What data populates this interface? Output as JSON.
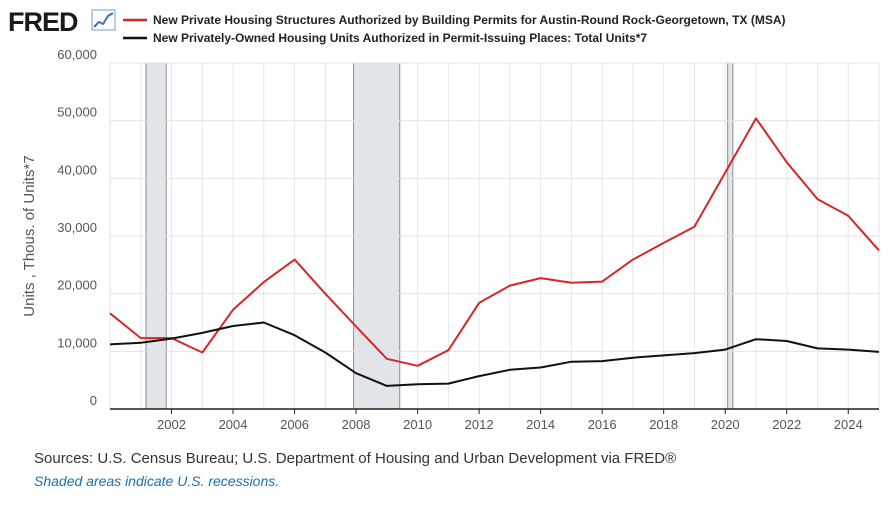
{
  "header": {
    "logo_text": "FRED",
    "logo_icon": "trend-line-icon"
  },
  "chart_data": {
    "type": "line",
    "title": "",
    "xlabel": "",
    "ylabel": "Units , Thous. of Units*7",
    "xlim": [
      2000,
      2025
    ],
    "ylim": [
      0,
      60000
    ],
    "y_ticks": [
      0,
      10000,
      20000,
      30000,
      40000,
      50000,
      60000
    ],
    "y_tick_labels": [
      "0",
      "10,000",
      "20,000",
      "30,000",
      "40,000",
      "50,000",
      "60,000"
    ],
    "x_ticks": [
      2002,
      2004,
      2006,
      2008,
      2010,
      2012,
      2014,
      2016,
      2018,
      2020,
      2022,
      2024
    ],
    "x_tick_labels": [
      "2002",
      "2004",
      "2006",
      "2008",
      "2010",
      "2012",
      "2014",
      "2016",
      "2018",
      "2020",
      "2022",
      "2024"
    ],
    "grid": true,
    "legend_position": "top",
    "recessions": [
      {
        "start": 2001.17,
        "end": 2001.83
      },
      {
        "start": 2007.92,
        "end": 2009.42
      },
      {
        "start": 2020.08,
        "end": 2020.25
      }
    ],
    "series": [
      {
        "name": "New Private Housing Structures Authorized by Building Permits for Austin-Round Rock-Georgetown, TX (MSA)",
        "color": "#d62728",
        "x": [
          2000,
          2001,
          2002,
          2003,
          2004,
          2005,
          2006,
          2007,
          2008,
          2009,
          2010,
          2011,
          2012,
          2013,
          2014,
          2015,
          2016,
          2017,
          2018,
          2019,
          2020,
          2021,
          2022,
          2023,
          2024,
          2025
        ],
        "values": [
          16600,
          12300,
          12300,
          9800,
          17200,
          22000,
          25900,
          20000,
          14300,
          8700,
          7500,
          10200,
          18400,
          21400,
          22700,
          21900,
          22100,
          25900,
          28800,
          31600,
          41000,
          50400,
          42800,
          36400,
          33500,
          27500
        ]
      },
      {
        "name": "New Privately-Owned Housing Units Authorized in Permit-Issuing Places: Total Units*7",
        "color": "#111111",
        "x": [
          2000,
          2001,
          2002,
          2003,
          2004,
          2005,
          2006,
          2007,
          2008,
          2009,
          2010,
          2011,
          2012,
          2013,
          2014,
          2015,
          2016,
          2017,
          2018,
          2019,
          2020,
          2021,
          2022,
          2023,
          2024,
          2025
        ],
        "values": [
          11200,
          11500,
          12200,
          13200,
          14400,
          15000,
          12800,
          9800,
          6200,
          4000,
          4300,
          4400,
          5700,
          6800,
          7200,
          8200,
          8300,
          8900,
          9300,
          9700,
          10300,
          12100,
          11800,
          10500,
          10300,
          9900
        ]
      }
    ]
  },
  "footer": {
    "sources": "Sources: U.S. Census Bureau; U.S. Department of Housing and Urban Development via FRED®",
    "note": "Shaded areas indicate U.S. recessions."
  }
}
